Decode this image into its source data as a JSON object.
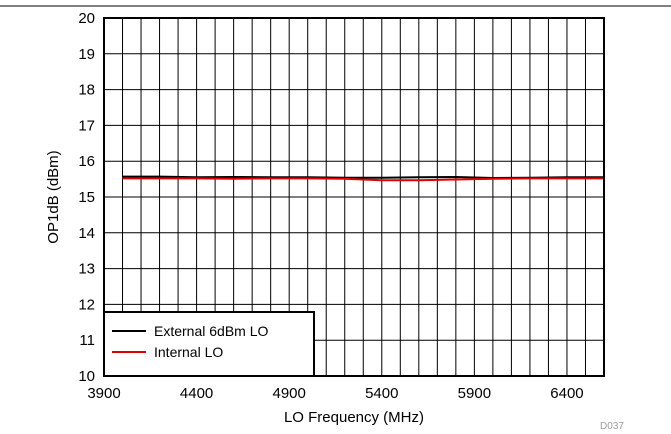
{
  "chart_data": {
    "type": "line",
    "xlabel": "LO Frequency (MHz)",
    "ylabel": "OP1dB (dBm)",
    "xlim": [
      3900,
      6600
    ],
    "ylim": [
      10,
      20
    ],
    "x_ticks": [
      3900,
      4400,
      4900,
      5400,
      5900,
      6400
    ],
    "y_ticks": [
      10,
      11,
      12,
      13,
      14,
      15,
      16,
      17,
      18,
      19,
      20
    ],
    "grid": true,
    "legend_position": "bottom-left",
    "series": [
      {
        "name": "External 6dBm LO",
        "color": "#000000",
        "x": [
          4000,
          4200,
          4400,
          4600,
          4800,
          5000,
          5200,
          5400,
          5600,
          5800,
          6000,
          6200,
          6400,
          6600
        ],
        "y": [
          15.57,
          15.57,
          15.55,
          15.56,
          15.55,
          15.55,
          15.54,
          15.54,
          15.55,
          15.56,
          15.53,
          15.54,
          15.55,
          15.55
        ]
      },
      {
        "name": "Internal LO",
        "color": "#e00000",
        "x": [
          4000,
          4200,
          4400,
          4600,
          4800,
          5000,
          5200,
          5400,
          5600,
          5800,
          6000,
          6200,
          6400,
          6600
        ],
        "y": [
          15.52,
          15.52,
          15.52,
          15.51,
          15.52,
          15.52,
          15.51,
          15.47,
          15.47,
          15.49,
          15.51,
          15.52,
          15.52,
          15.52
        ]
      }
    ]
  },
  "figure_code": "D037"
}
